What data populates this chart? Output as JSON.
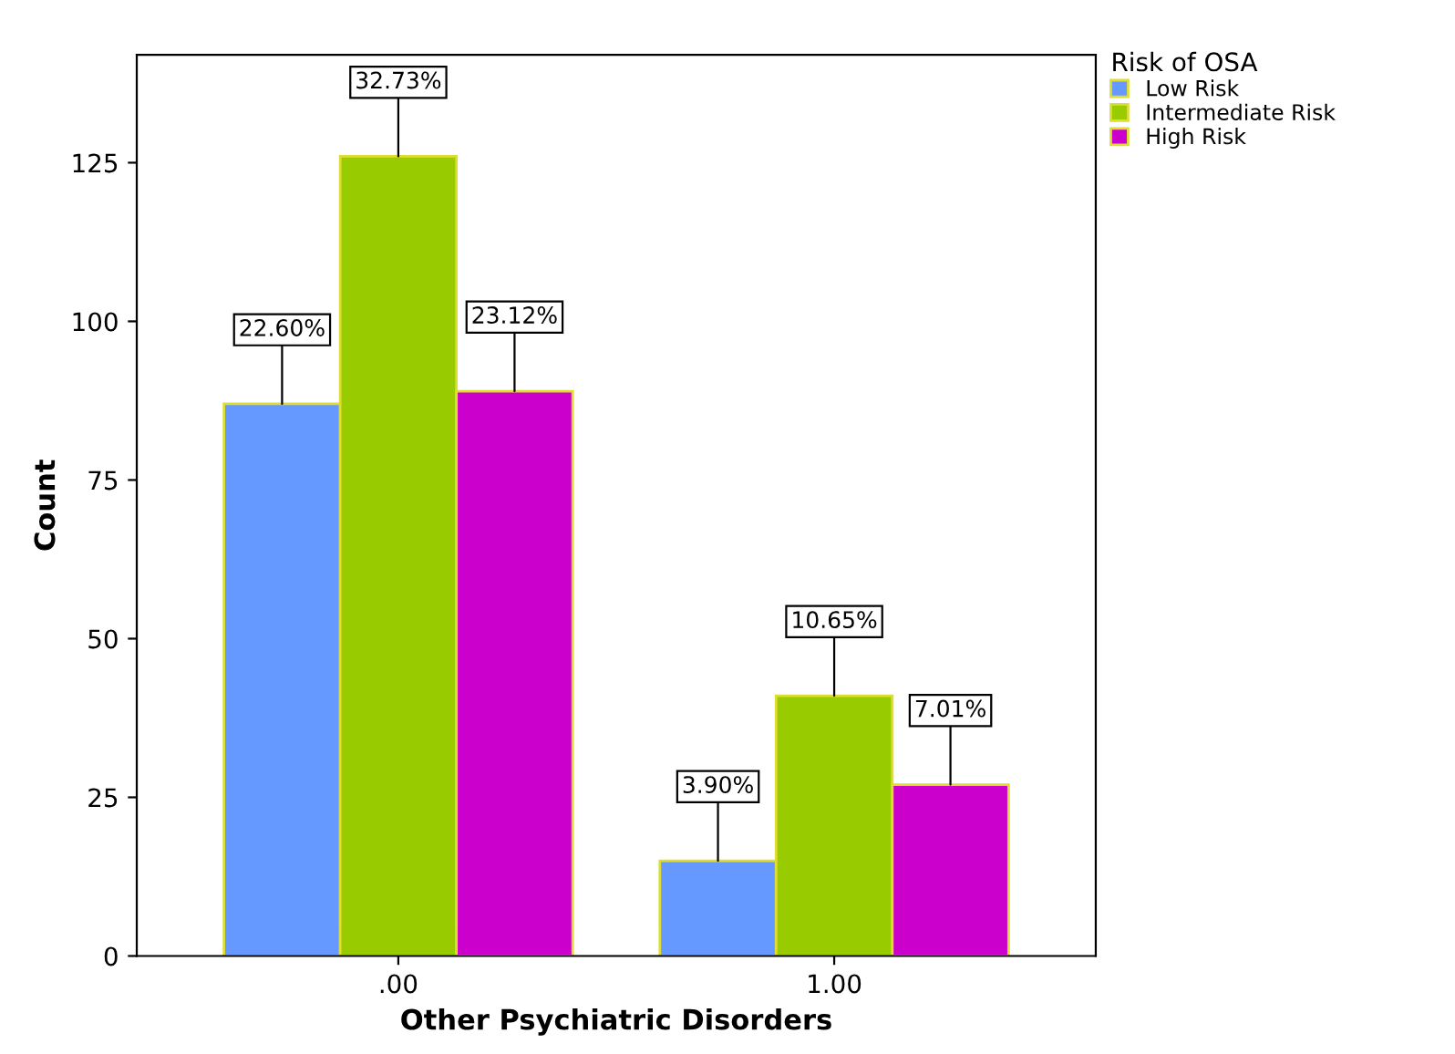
{
  "chart_data": {
    "type": "bar",
    "xlabel": "Other Psychiatric Disorders",
    "ylabel": "Count",
    "legend_title": "Risk of OSA",
    "categories": [
      ".00",
      "1.00"
    ],
    "series": [
      {
        "name": "Low Risk",
        "color": "#6699ff",
        "values": [
          87,
          15
        ]
      },
      {
        "name": "Intermediate Risk",
        "color": "#99cc00",
        "values": [
          126,
          41
        ]
      },
      {
        "name": "High Risk",
        "color": "#cc00cc",
        "values": [
          89,
          27
        ]
      }
    ],
    "annotations": [
      {
        "text": "22.60%",
        "y": 87
      },
      {
        "text": "32.73%",
        "y": 126
      },
      {
        "text": "23.12%",
        "y": 89
      },
      {
        "text": "3.90%",
        "y": 15
      },
      {
        "text": "10.65%",
        "y": 41
      },
      {
        "text": "7.01%",
        "y": 27
      }
    ],
    "ylim": [
      0,
      142
    ],
    "yticks": [
      0,
      25,
      50,
      75,
      100,
      125
    ],
    "grid": false,
    "legend": "top right"
  }
}
